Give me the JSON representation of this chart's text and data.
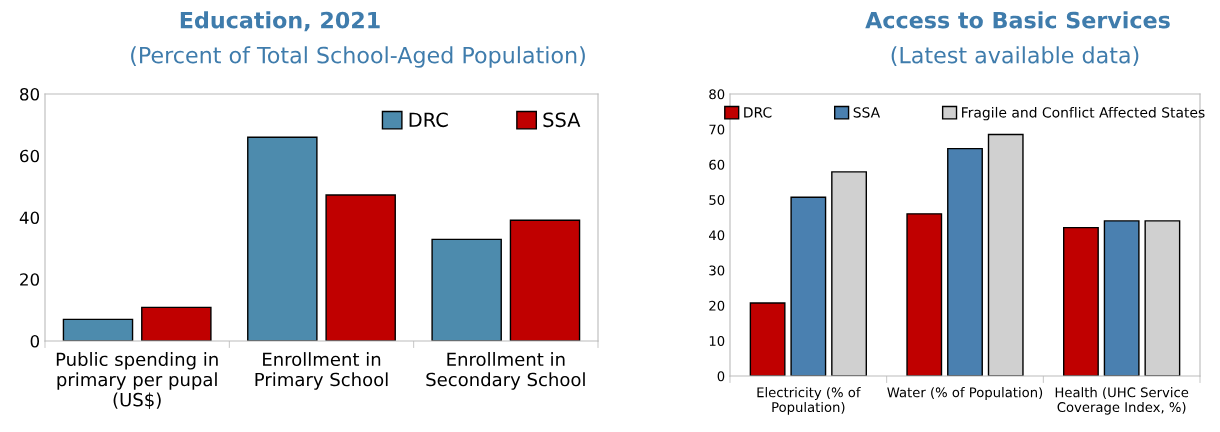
{
  "chart_data": [
    {
      "type": "bar",
      "title": "Education, 2021",
      "subtitle": "(Percent of Total School-Aged Population)",
      "categories": [
        "Public spending in\nprimary per pupal\n(US$)",
        "Enrollment in\nPrimary School",
        "Enrollment in\nSecondary School"
      ],
      "series": [
        {
          "name": "DRC",
          "color": "#4d8bad",
          "values": [
            7.0,
            66.0,
            32.9
          ]
        },
        {
          "name": "SSA",
          "color": "#c00000",
          "values": [
            10.9,
            47.3,
            39.1
          ]
        }
      ],
      "ylim": [
        0,
        80
      ],
      "yticks": [
        0,
        20,
        40,
        60,
        80
      ],
      "grid": false,
      "legend": "top right"
    },
    {
      "type": "bar",
      "title": "Access to Basic Services",
      "subtitle": "(Latest available data)",
      "categories": [
        "Electricity (% of\nPopulation)",
        "Water (% of Population)",
        "Health (UHC Service\nCoverage Index, %)"
      ],
      "series": [
        {
          "name": "DRC",
          "color": "#c00000",
          "values": [
            20.7,
            46.0,
            42.1
          ]
        },
        {
          "name": "SSA",
          "color": "#4a80b0",
          "values": [
            50.7,
            64.5,
            44.0
          ]
        },
        {
          "name": "Fragile and Conflict Affected States",
          "color": "#d0d0d0",
          "values": [
            57.9,
            68.5,
            44.0
          ]
        }
      ],
      "ylim": [
        0,
        80
      ],
      "yticks": [
        0,
        10,
        20,
        30,
        40,
        50,
        60,
        70,
        80
      ],
      "grid": false,
      "legend": "top"
    }
  ]
}
